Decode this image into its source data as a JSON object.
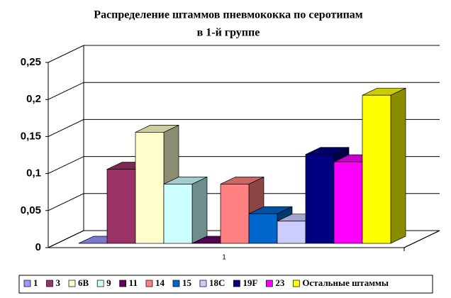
{
  "chart_data": {
    "type": "bar3d",
    "title": [
      "Распределение штаммов пневмококка по серотипам",
      "в 1-й группе"
    ],
    "categories": [
      "1"
    ],
    "ylim": [
      0,
      0.25
    ],
    "yticks": [
      {
        "value": 0,
        "label": "0"
      },
      {
        "value": 0.05,
        "label": "0,05"
      },
      {
        "value": 0.1,
        "label": "0,1"
      },
      {
        "value": 0.15,
        "label": "0,15"
      },
      {
        "value": 0.2,
        "label": "0,2"
      },
      {
        "value": 0.25,
        "label": "0,25"
      }
    ],
    "grid": true,
    "legend": "bottom",
    "series": [
      {
        "name": "1",
        "color": "#9999ff",
        "values": [
          0
        ]
      },
      {
        "name": "3",
        "color": "#993366",
        "values": [
          0.1
        ]
      },
      {
        "name": "6B",
        "color": "#ffffcc",
        "values": [
          0.15
        ]
      },
      {
        "name": "9",
        "color": "#ccffff",
        "values": [
          0.08
        ]
      },
      {
        "name": "11",
        "color": "#660066",
        "values": [
          0
        ]
      },
      {
        "name": "14",
        "color": "#ff8080",
        "values": [
          0.08
        ]
      },
      {
        "name": "15",
        "color": "#0066cc",
        "values": [
          0.04
        ]
      },
      {
        "name": "18C",
        "color": "#ccccff",
        "values": [
          0.03
        ]
      },
      {
        "name": "19F",
        "color": "#000080",
        "values": [
          0.12
        ]
      },
      {
        "name": "23",
        "color": "#ff00ff",
        "values": [
          0.11
        ]
      },
      {
        "name": "Остальные штаммы",
        "color": "#ffff00",
        "values": [
          0.2
        ]
      }
    ]
  }
}
